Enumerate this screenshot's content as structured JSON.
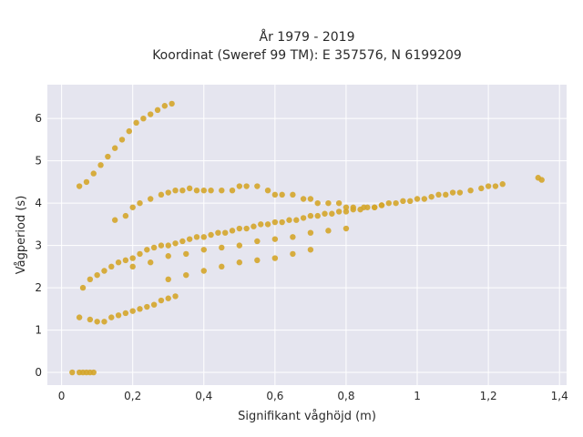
{
  "chart_data": {
    "type": "scatter",
    "title_line1": "År 1979 - 2019",
    "title_line2": "Koordinat (Sweref 99 TM): E 357576, N 6199209",
    "xlabel": "Signifikant våghöjd (m)",
    "ylabel": "Vågperiod (s)",
    "xlim": [
      -0.04,
      1.42
    ],
    "ylim": [
      -0.3,
      6.8
    ],
    "x_ticks": [
      0,
      0.2,
      0.4,
      0.6,
      0.8,
      1,
      1.2,
      1.4
    ],
    "x_tick_labels": [
      "0",
      "0,2",
      "0,4",
      "0,6",
      "0,8",
      "1",
      "1,2",
      "1,4"
    ],
    "y_ticks": [
      0,
      1,
      2,
      3,
      4,
      5,
      6
    ],
    "y_tick_labels": [
      "0",
      "1",
      "2",
      "3",
      "4",
      "5",
      "6"
    ],
    "grid": true,
    "colors": {
      "points": "#d4a52a",
      "plot_bg": "#e5e5ef",
      "grid": "#ffffff"
    },
    "series": [
      {
        "x": [
          0.03,
          0.05,
          0.06,
          0.07,
          0.08,
          0.09,
          0.05,
          0.08,
          0.1,
          0.12,
          0.14,
          0.16,
          0.18,
          0.2,
          0.22,
          0.24,
          0.26,
          0.28,
          0.3,
          0.32,
          0.05,
          0.07,
          0.09,
          0.11,
          0.13,
          0.15,
          0.17,
          0.19,
          0.21,
          0.23,
          0.25,
          0.27,
          0.29,
          0.31,
          0.06,
          0.08,
          0.1,
          0.12,
          0.14,
          0.16,
          0.18,
          0.2,
          0.22,
          0.24,
          0.26,
          0.28,
          0.3,
          0.32,
          0.34,
          0.36,
          0.38,
          0.4,
          0.42,
          0.44,
          0.46,
          0.48,
          0.5,
          0.52,
          0.54,
          0.56,
          0.58,
          0.6,
          0.62,
          0.64,
          0.66,
          0.68,
          0.7,
          0.72,
          0.74,
          0.76,
          0.78,
          0.8,
          0.82,
          0.84,
          0.86,
          0.88,
          0.9,
          0.92,
          0.94,
          0.96,
          0.98,
          1.0,
          1.02,
          1.04,
          1.06,
          1.08,
          1.1,
          1.12,
          1.15,
          1.18,
          1.2,
          1.22,
          1.24,
          1.34,
          1.35,
          0.15,
          0.18,
          0.2,
          0.22,
          0.25,
          0.28,
          0.3,
          0.32,
          0.34,
          0.36,
          0.38,
          0.4,
          0.42,
          0.45,
          0.48,
          0.5,
          0.52,
          0.55,
          0.58,
          0.6,
          0.62,
          0.65,
          0.68,
          0.7,
          0.72,
          0.75,
          0.78,
          0.8,
          0.82,
          0.85,
          0.88,
          0.9,
          0.2,
          0.25,
          0.3,
          0.35,
          0.4,
          0.45,
          0.5,
          0.55,
          0.6,
          0.65,
          0.7,
          0.75,
          0.8,
          0.3,
          0.35,
          0.4,
          0.45,
          0.5,
          0.55,
          0.6,
          0.65,
          0.7
        ],
        "y": [
          0,
          0,
          0,
          0,
          0,
          0,
          1.3,
          1.25,
          1.2,
          1.2,
          1.3,
          1.35,
          1.4,
          1.45,
          1.5,
          1.55,
          1.6,
          1.7,
          1.75,
          1.8,
          4.4,
          4.5,
          4.7,
          4.9,
          5.1,
          5.3,
          5.5,
          5.7,
          5.9,
          6.0,
          6.1,
          6.2,
          6.3,
          6.35,
          2.0,
          2.2,
          2.3,
          2.4,
          2.5,
          2.6,
          2.65,
          2.7,
          2.8,
          2.9,
          2.95,
          3.0,
          3.0,
          3.05,
          3.1,
          3.15,
          3.2,
          3.2,
          3.25,
          3.3,
          3.3,
          3.35,
          3.4,
          3.4,
          3.45,
          3.5,
          3.5,
          3.55,
          3.55,
          3.6,
          3.6,
          3.65,
          3.7,
          3.7,
          3.75,
          3.75,
          3.8,
          3.8,
          3.85,
          3.85,
          3.9,
          3.9,
          3.95,
          4.0,
          4.0,
          4.05,
          4.05,
          4.1,
          4.1,
          4.15,
          4.2,
          4.2,
          4.25,
          4.25,
          4.3,
          4.35,
          4.4,
          4.4,
          4.45,
          4.6,
          4.55,
          3.6,
          3.7,
          3.9,
          4.0,
          4.1,
          4.2,
          4.25,
          4.3,
          4.3,
          4.35,
          4.3,
          4.3,
          4.3,
          4.3,
          4.3,
          4.4,
          4.4,
          4.4,
          4.3,
          4.2,
          4.2,
          4.2,
          4.1,
          4.1,
          4.0,
          4.0,
          4.0,
          3.9,
          3.9,
          3.9,
          3.9,
          3.95,
          2.5,
          2.6,
          2.75,
          2.8,
          2.9,
          2.95,
          3.0,
          3.1,
          3.15,
          3.2,
          3.3,
          3.35,
          3.4,
          2.2,
          2.3,
          2.4,
          2.5,
          2.6,
          2.65,
          2.7,
          2.8,
          2.9
        ]
      }
    ]
  }
}
